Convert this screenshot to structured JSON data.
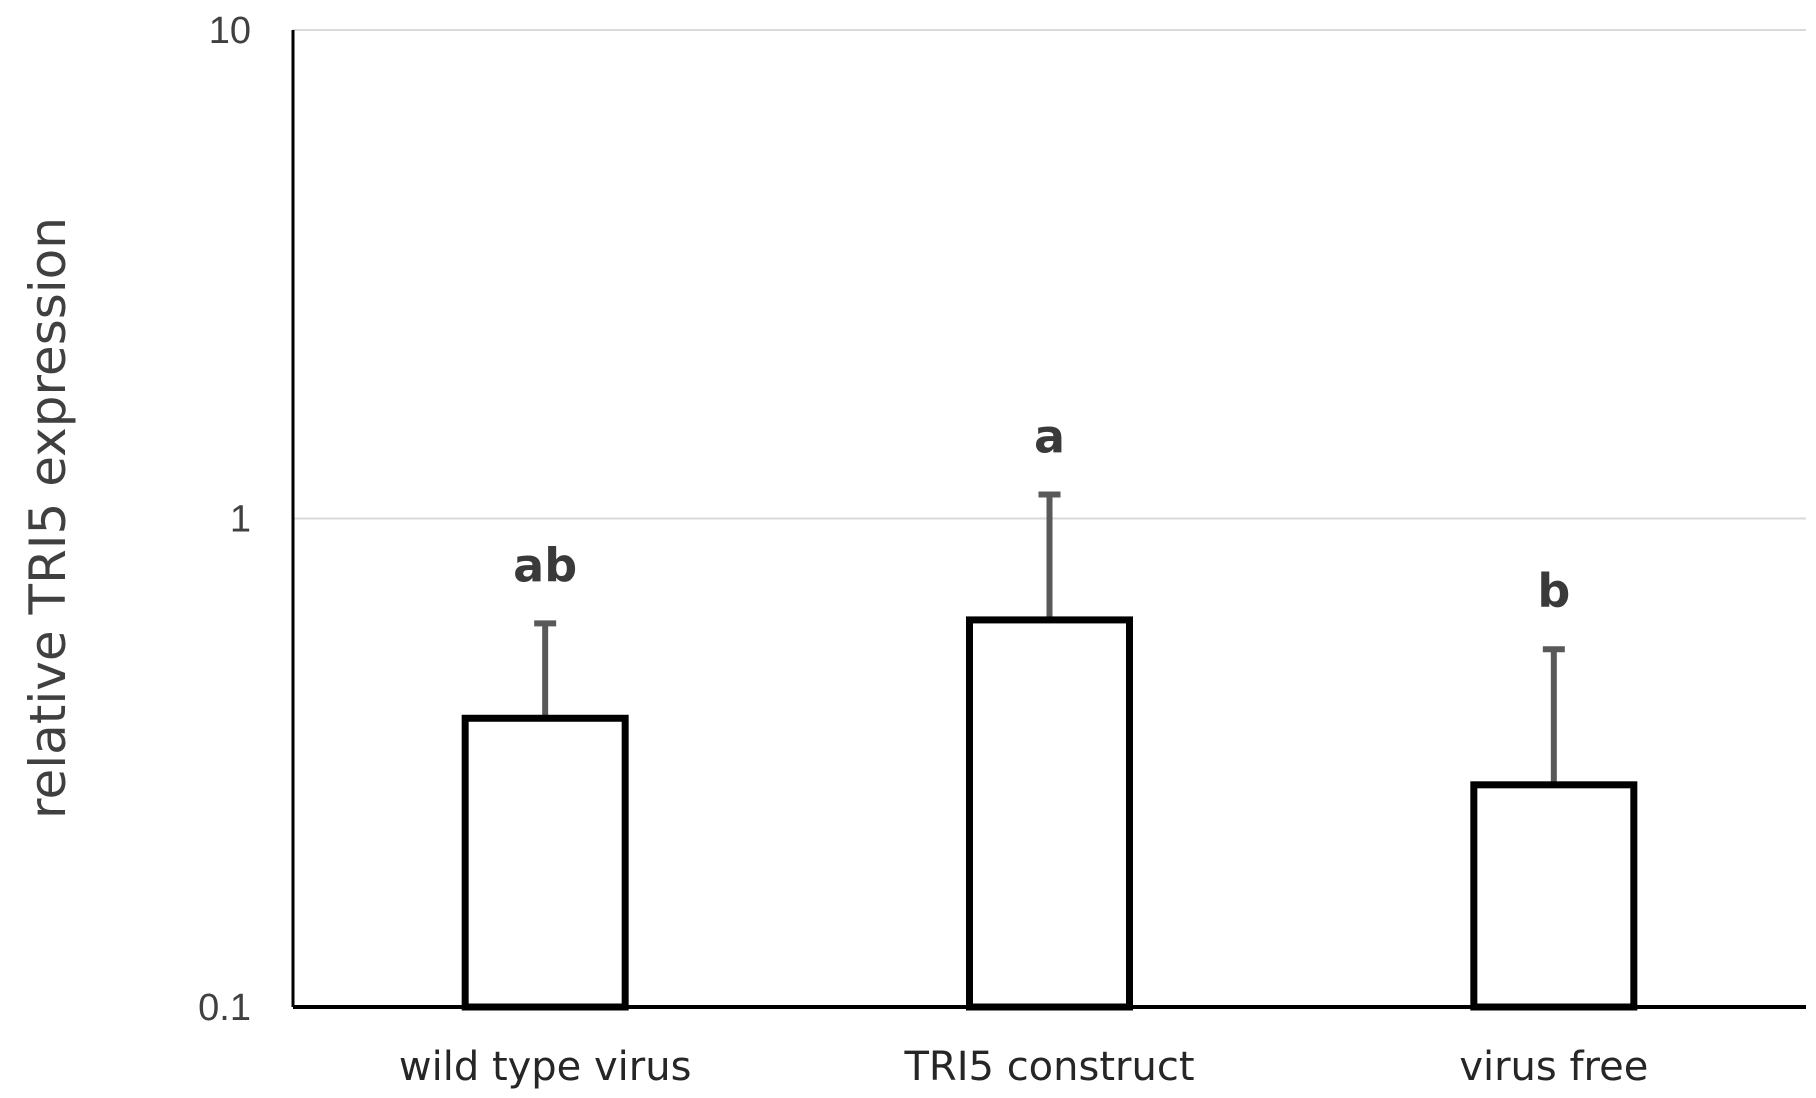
{
  "chart_data": {
    "type": "bar",
    "ylabel": "relative TRI5 expression",
    "yscale": "log",
    "ylim": [
      0.1,
      10
    ],
    "yticks": [
      "0.1",
      "1",
      "10"
    ],
    "ytick_values": [
      0.1,
      1,
      10
    ],
    "grid": true,
    "categories": [
      "wild type virus",
      "TRI5 construct",
      "virus free"
    ],
    "values": [
      0.39,
      0.62,
      0.285
    ],
    "error_upper": [
      0.61,
      1.12,
      0.54
    ],
    "significance": [
      "ab",
      "a",
      "b"
    ],
    "colors": {
      "bar_fill": "#ffffff",
      "bar_stroke": "#000000",
      "error": "#595959",
      "grid": "#d9d9d9",
      "axis": "#000000"
    }
  }
}
